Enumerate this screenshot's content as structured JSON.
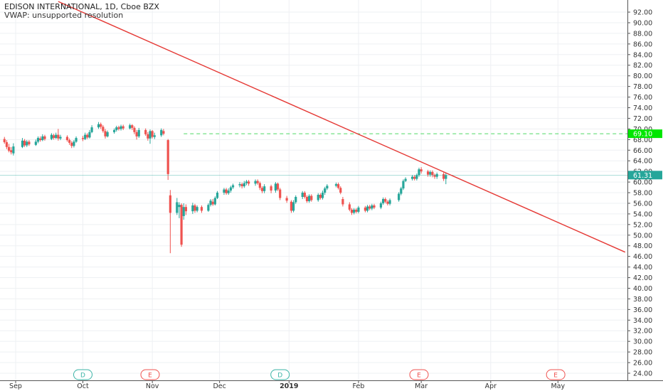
{
  "header": {
    "title": "EDISON INTERNATIONAL, 1D, Cboe BZX",
    "indicator": "VWAP: unsupported resolution"
  },
  "colors": {
    "up": "#26a69a",
    "down": "#ef5350",
    "trendline": "#e53935",
    "hline": "#4cd964",
    "price_label_bg": "#26a69a",
    "hline_label_bg": "#00e600",
    "axis_text": "#333333",
    "grid": "#eef0f3"
  },
  "chart_data": {
    "type": "candlestick",
    "ylim": [
      23,
      94
    ],
    "yticks": [
      "24.00",
      "26.00",
      "28.00",
      "30.00",
      "32.00",
      "34.00",
      "36.00",
      "38.00",
      "40.00",
      "42.00",
      "44.00",
      "46.00",
      "48.00",
      "50.00",
      "52.00",
      "54.00",
      "56.00",
      "58.00",
      "60.00",
      "62.00",
      "64.00",
      "66.00",
      "68.00",
      "70.00",
      "72.00",
      "74.00",
      "76.00",
      "78.00",
      "80.00",
      "82.00",
      "84.00",
      "86.00",
      "88.00",
      "90.00",
      "92.00"
    ],
    "xticks": [
      {
        "label": "Sep",
        "date": "2018-09-01",
        "bold": false
      },
      {
        "label": "Oct",
        "date": "2018-10-01",
        "bold": false
      },
      {
        "label": "Nov",
        "date": "2018-11-01",
        "bold": false
      },
      {
        "label": "Dec",
        "date": "2018-12-01",
        "bold": false
      },
      {
        "label": "2019",
        "date": "2019-01-01",
        "bold": true
      },
      {
        "label": "Feb",
        "date": "2019-02-01",
        "bold": false
      },
      {
        "label": "Mar",
        "date": "2019-03-01",
        "bold": false
      },
      {
        "label": "Apr",
        "date": "2019-04-01",
        "bold": false
      },
      {
        "label": "May",
        "date": "2019-05-01",
        "bold": false
      }
    ],
    "events": [
      {
        "label": "D",
        "date": "2018-10-01",
        "kind": "dividend"
      },
      {
        "label": "E",
        "date": "2018-10-31",
        "kind": "earnings"
      },
      {
        "label": "D",
        "date": "2018-12-28",
        "kind": "dividend"
      },
      {
        "label": "E",
        "date": "2019-02-28",
        "kind": "earnings"
      },
      {
        "label": "E",
        "date": "2019-04-30",
        "kind": "earnings"
      }
    ],
    "trendline": {
      "from": {
        "date": "2018-09-20",
        "price": 94.0
      },
      "to": {
        "date": "2019-05-31",
        "price": 46.8
      }
    },
    "hline": {
      "price": 69.1,
      "label": "69.10",
      "from_date": "2018-11-15"
    },
    "last_price": {
      "price": 61.31,
      "label": "61.31"
    },
    "candles": [
      [
        "2018-08-27",
        68.1,
        67.5,
        68.5,
        67.2
      ],
      [
        "2018-08-28",
        67.5,
        66.6,
        67.9,
        66.2
      ],
      [
        "2018-08-29",
        66.6,
        65.9,
        67.2,
        65.6
      ],
      [
        "2018-08-30",
        66.0,
        65.6,
        66.6,
        65.2
      ],
      [
        "2018-08-31",
        65.4,
        66.7,
        67.3,
        65.0
      ],
      [
        "2018-09-04",
        66.6,
        67.8,
        68.3,
        66.4
      ],
      [
        "2018-09-05",
        67.8,
        66.9,
        68.1,
        66.6
      ],
      [
        "2018-09-06",
        66.9,
        67.6,
        67.9,
        66.6
      ],
      [
        "2018-09-07",
        67.6,
        67.1,
        67.9,
        66.8
      ],
      [
        "2018-09-10",
        67.0,
        67.6,
        68.0,
        66.8
      ],
      [
        "2018-09-11",
        67.6,
        68.3,
        68.6,
        67.3
      ],
      [
        "2018-09-12",
        68.2,
        67.9,
        68.6,
        67.6
      ],
      [
        "2018-09-13",
        67.9,
        68.6,
        69.0,
        67.7
      ],
      [
        "2018-09-14",
        68.6,
        68.1,
        68.9,
        67.8
      ],
      [
        "2018-09-17",
        68.1,
        68.9,
        69.2,
        67.9
      ],
      [
        "2018-09-18",
        68.8,
        68.3,
        69.1,
        68.0
      ],
      [
        "2018-09-19",
        68.3,
        68.9,
        69.3,
        68.1
      ],
      [
        "2018-09-20",
        68.9,
        68.2,
        70.0,
        67.8
      ],
      [
        "2018-09-21",
        68.2,
        68.5,
        68.9,
        67.9
      ],
      [
        "2018-09-24",
        68.5,
        67.9,
        68.8,
        67.6
      ],
      [
        "2018-09-25",
        67.9,
        67.4,
        68.2,
        67.0
      ],
      [
        "2018-09-26",
        67.4,
        66.8,
        67.7,
        66.4
      ],
      [
        "2018-09-27",
        66.8,
        67.6,
        67.9,
        66.5
      ],
      [
        "2018-09-28",
        67.6,
        68.3,
        68.6,
        67.4
      ],
      [
        "2018-10-01",
        68.3,
        68.1,
        68.7,
        67.7
      ],
      [
        "2018-10-02",
        68.1,
        68.9,
        69.3,
        67.9
      ],
      [
        "2018-10-03",
        68.9,
        68.4,
        69.2,
        68.1
      ],
      [
        "2018-10-04",
        68.4,
        69.4,
        69.8,
        68.2
      ],
      [
        "2018-10-05",
        69.4,
        70.3,
        70.7,
        69.2
      ],
      [
        "2018-10-08",
        70.3,
        70.9,
        71.3,
        70.0
      ],
      [
        "2018-10-09",
        70.9,
        70.4,
        71.2,
        70.0
      ],
      [
        "2018-10-10",
        70.4,
        69.6,
        70.7,
        69.3
      ],
      [
        "2018-10-11",
        69.6,
        68.6,
        70.0,
        68.2
      ],
      [
        "2018-10-12",
        68.6,
        69.4,
        69.7,
        68.4
      ],
      [
        "2018-10-15",
        69.4,
        69.8,
        70.1,
        69.1
      ],
      [
        "2018-10-16",
        69.8,
        70.3,
        70.6,
        69.5
      ],
      [
        "2018-10-17",
        70.3,
        70.0,
        70.6,
        69.7
      ],
      [
        "2018-10-18",
        70.0,
        70.5,
        70.8,
        69.7
      ],
      [
        "2018-10-19",
        70.5,
        70.1,
        70.8,
        69.8
      ],
      [
        "2018-10-22",
        70.1,
        70.7,
        71.0,
        69.9
      ],
      [
        "2018-10-23",
        70.7,
        70.2,
        70.9,
        69.8
      ],
      [
        "2018-10-24",
        70.2,
        69.4,
        70.5,
        69.0
      ],
      [
        "2018-10-25",
        69.4,
        68.6,
        69.8,
        68.0
      ],
      [
        "2018-10-26",
        68.6,
        69.8,
        70.2,
        68.3
      ],
      [
        "2018-10-29",
        69.8,
        69.0,
        70.1,
        68.7
      ],
      [
        "2018-10-30",
        69.0,
        68.2,
        69.4,
        67.8
      ],
      [
        "2018-10-31",
        68.2,
        69.6,
        69.9,
        67.2
      ],
      [
        "2018-11-01",
        69.6,
        68.5,
        69.8,
        68.2
      ],
      [
        "2018-11-02",
        68.5,
        68.8,
        69.3,
        68.1
      ],
      [
        "2018-11-05",
        68.8,
        69.8,
        70.1,
        68.5
      ],
      [
        "2018-11-06",
        69.6,
        69.1,
        70.0,
        68.8
      ],
      [
        "2018-11-08",
        67.9,
        61.5,
        68.1,
        60.4
      ],
      [
        "2018-11-09",
        57.5,
        54.2,
        58.5,
        46.6
      ],
      [
        "2018-11-12",
        54.2,
        56.2,
        57.0,
        53.8
      ],
      [
        "2018-11-13",
        55.3,
        55.7,
        56.2,
        53.2
      ],
      [
        "2018-11-14",
        55.7,
        48.2,
        56.0,
        47.8
      ],
      [
        "2018-11-15",
        53.6,
        55.3,
        56.0,
        52.9
      ],
      [
        "2018-11-16",
        55.3,
        54.5,
        55.8,
        53.8
      ],
      [
        "2018-11-19",
        54.5,
        55.6,
        56.1,
        54.0
      ],
      [
        "2018-11-20",
        55.6,
        54.6,
        55.9,
        54.2
      ],
      [
        "2018-11-21",
        54.6,
        55.3,
        55.6,
        54.3
      ],
      [
        "2018-11-23",
        55.3,
        54.6,
        55.6,
        54.2
      ],
      [
        "2018-11-26",
        54.6,
        55.7,
        56.0,
        54.4
      ],
      [
        "2018-11-27",
        55.7,
        56.5,
        56.8,
        55.4
      ],
      [
        "2018-11-28",
        56.3,
        55.8,
        56.8,
        55.5
      ],
      [
        "2018-11-29",
        55.8,
        57.0,
        57.3,
        55.6
      ],
      [
        "2018-11-30",
        57.0,
        58.0,
        58.3,
        56.8
      ],
      [
        "2018-12-03",
        58.0,
        58.6,
        58.9,
        57.6
      ],
      [
        "2018-12-04",
        58.6,
        57.9,
        58.9,
        57.6
      ],
      [
        "2018-12-05",
        57.9,
        58.4,
        58.8,
        57.6
      ],
      [
        "2018-12-06",
        58.4,
        59.0,
        59.3,
        58.0
      ],
      [
        "2018-12-07",
        59.0,
        59.4,
        59.7,
        58.7
      ],
      [
        "2018-12-10",
        59.4,
        59.6,
        60.0,
        59.0
      ],
      [
        "2018-12-11",
        59.6,
        59.2,
        59.9,
        58.8
      ],
      [
        "2018-12-12",
        59.2,
        59.8,
        60.2,
        58.9
      ],
      [
        "2018-12-13",
        59.8,
        60.1,
        60.4,
        59.4
      ],
      [
        "2018-12-14",
        60.1,
        59.7,
        60.4,
        59.3
      ],
      [
        "2018-12-17",
        59.7,
        60.2,
        60.5,
        59.3
      ],
      [
        "2018-12-18",
        60.2,
        59.8,
        60.5,
        59.5
      ],
      [
        "2018-12-19",
        59.8,
        58.9,
        60.1,
        58.5
      ],
      [
        "2018-12-20",
        58.9,
        58.3,
        59.2,
        57.9
      ],
      [
        "2018-12-21",
        58.3,
        59.2,
        59.6,
        57.9
      ],
      [
        "2018-12-24",
        59.2,
        58.4,
        59.5,
        57.9
      ],
      [
        "2018-12-26",
        58.4,
        59.7,
        60.0,
        58.0
      ],
      [
        "2018-12-27",
        59.7,
        58.6,
        59.9,
        58.3
      ],
      [
        "2018-12-28",
        58.6,
        57.0,
        58.9,
        56.6
      ],
      [
        "2018-12-31",
        57.0,
        56.5,
        57.4,
        56.1
      ],
      [
        "2019-01-02",
        56.3,
        54.6,
        56.6,
        54.2
      ],
      [
        "2019-01-03",
        54.6,
        56.2,
        56.6,
        54.3
      ],
      [
        "2019-01-04",
        56.2,
        57.2,
        57.5,
        55.9
      ],
      [
        "2019-01-07",
        57.2,
        58.0,
        58.3,
        56.8
      ],
      [
        "2019-01-08",
        58.0,
        57.2,
        58.3,
        56.9
      ],
      [
        "2019-01-09",
        57.2,
        56.4,
        57.5,
        56.1
      ],
      [
        "2019-01-10",
        56.4,
        57.4,
        57.7,
        56.1
      ],
      [
        "2019-01-11",
        57.4,
        56.6,
        57.7,
        56.3
      ],
      [
        "2019-01-14",
        56.6,
        57.6,
        57.9,
        56.3
      ],
      [
        "2019-01-15",
        57.6,
        57.0,
        57.9,
        56.7
      ],
      [
        "2019-01-16",
        57.0,
        58.0,
        58.4,
        56.7
      ],
      [
        "2019-01-17",
        58.0,
        58.8,
        59.1,
        57.6
      ],
      [
        "2019-01-18",
        58.8,
        59.3,
        59.6,
        58.5
      ],
      [
        "2019-01-22",
        59.3,
        59.6,
        59.9,
        59.0
      ],
      [
        "2019-01-23",
        59.6,
        58.9,
        59.9,
        58.6
      ],
      [
        "2019-01-24",
        58.9,
        58.0,
        59.2,
        57.7
      ],
      [
        "2019-01-25",
        56.8,
        55.8,
        57.2,
        55.4
      ],
      [
        "2019-01-28",
        55.8,
        54.8,
        56.2,
        54.5
      ],
      [
        "2019-01-29",
        54.8,
        54.2,
        55.1,
        53.8
      ],
      [
        "2019-01-30",
        54.2,
        54.8,
        55.1,
        53.9
      ],
      [
        "2019-01-31",
        54.8,
        54.4,
        55.1,
        54.1
      ],
      [
        "2019-02-01",
        54.4,
        55.2,
        55.5,
        54.1
      ],
      [
        "2019-02-04",
        55.2,
        54.6,
        55.5,
        54.3
      ],
      [
        "2019-02-05",
        54.6,
        55.4,
        55.7,
        54.3
      ],
      [
        "2019-02-06",
        55.4,
        55.0,
        55.7,
        54.7
      ],
      [
        "2019-02-07",
        55.0,
        55.6,
        55.9,
        54.7
      ],
      [
        "2019-02-08",
        55.6,
        55.2,
        55.9,
        54.9
      ],
      [
        "2019-02-11",
        55.2,
        56.0,
        56.3,
        54.9
      ],
      [
        "2019-02-12",
        56.0,
        56.8,
        57.1,
        55.7
      ],
      [
        "2019-02-13",
        56.8,
        56.3,
        57.1,
        56.0
      ],
      [
        "2019-02-14",
        56.3,
        55.9,
        56.6,
        55.6
      ],
      [
        "2019-02-15",
        55.9,
        56.6,
        56.9,
        55.6
      ],
      [
        "2019-02-19",
        56.6,
        57.8,
        58.1,
        56.3
      ],
      [
        "2019-02-20",
        57.8,
        58.8,
        59.1,
        57.5
      ],
      [
        "2019-02-21",
        58.8,
        60.2,
        60.5,
        58.5
      ],
      [
        "2019-02-22",
        60.2,
        60.6,
        60.9,
        60.0
      ],
      [
        "2019-02-25",
        60.6,
        61.0,
        61.3,
        60.3
      ],
      [
        "2019-02-26",
        61.0,
        60.6,
        61.3,
        60.3
      ],
      [
        "2019-02-27",
        60.6,
        61.3,
        61.6,
        60.3
      ],
      [
        "2019-02-28",
        61.3,
        62.4,
        62.7,
        61.0
      ],
      [
        "2019-03-01",
        62.4,
        62.0,
        62.8,
        61.6
      ],
      [
        "2019-03-04",
        62.0,
        61.4,
        62.3,
        61.0
      ],
      [
        "2019-03-05",
        61.4,
        61.9,
        62.2,
        61.0
      ],
      [
        "2019-03-06",
        61.9,
        61.3,
        62.2,
        60.9
      ],
      [
        "2019-03-07",
        61.3,
        61.0,
        61.6,
        60.6
      ],
      [
        "2019-03-08",
        61.0,
        61.5,
        61.8,
        60.6
      ],
      [
        "2019-03-11",
        61.5,
        60.6,
        61.8,
        60.2
      ],
      [
        "2019-03-12",
        60.6,
        61.3,
        61.8,
        59.6
      ]
    ]
  }
}
